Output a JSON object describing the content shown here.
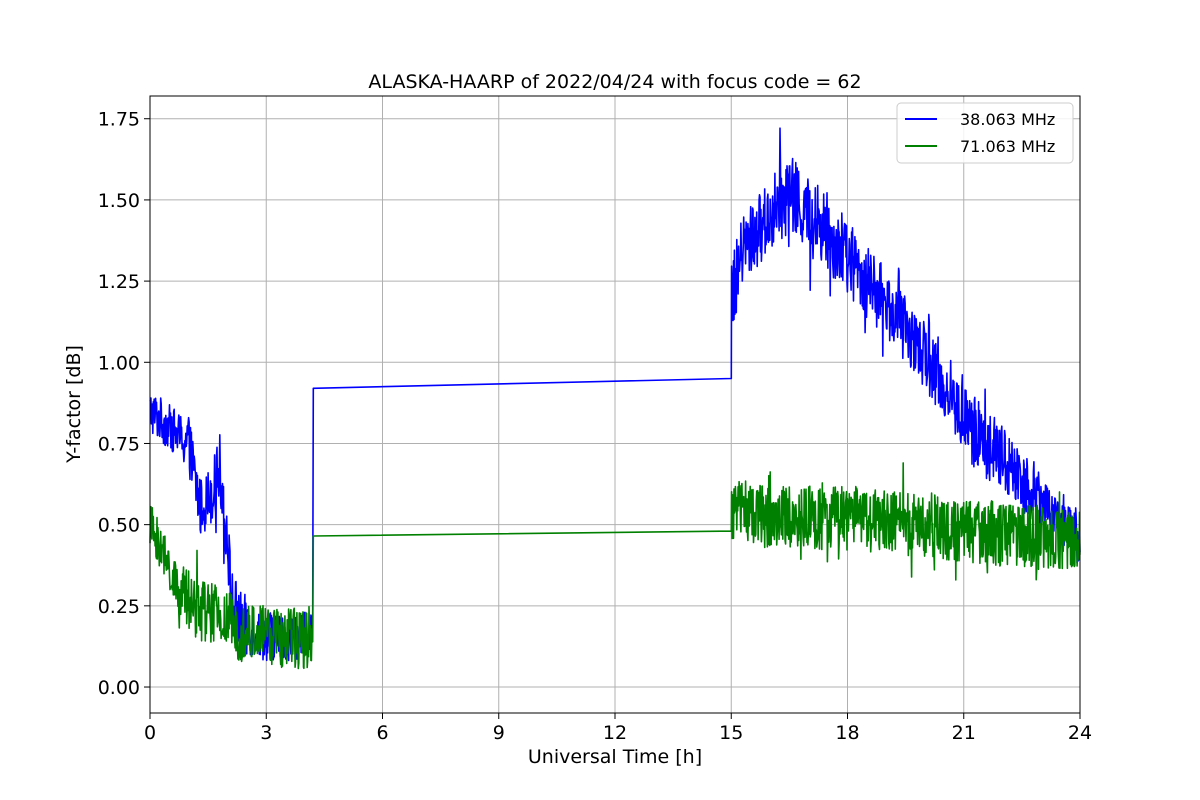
{
  "chart_data": {
    "type": "line",
    "title": "ALASKA-HAARP of 2022/04/24 with focus code = 62",
    "xlabel": "Universal Time [h]",
    "ylabel": "Y-factor [dB]",
    "xlim": [
      0,
      24
    ],
    "ylim": [
      -0.08,
      1.82
    ],
    "xticks": [
      0,
      3,
      6,
      9,
      12,
      15,
      18,
      21,
      24
    ],
    "xtick_labels": [
      "0",
      "3",
      "6",
      "9",
      "12",
      "15",
      "18",
      "21",
      "24"
    ],
    "yticks": [
      0.0,
      0.25,
      0.5,
      0.75,
      1.0,
      1.25,
      1.5,
      1.75
    ],
    "ytick_labels": [
      "0.00",
      "0.25",
      "0.50",
      "0.75",
      "1.00",
      "1.25",
      "1.50",
      "1.75"
    ],
    "grid": true,
    "legend_position": "top-right",
    "series": [
      {
        "name": "38.063 MHz",
        "color": "#0000ff",
        "noise": [
          0.07,
          0.09,
          0.1,
          0.08,
          0.07,
          0.11,
          0.12,
          0.12,
          0.11,
          0.1,
          0.1,
          0.11,
          0.1,
          0.07
        ],
        "x": [
          0,
          0.5,
          1.0,
          1.3,
          1.6,
          1.8,
          2.0,
          2.1,
          2.3,
          2.5,
          3.0,
          3.5,
          4.0,
          4.2,
          4.21,
          15.0,
          15.01,
          15.3,
          16.0,
          16.5,
          17.0,
          17.5,
          18.0,
          19.0,
          20.0,
          21.0,
          22.0,
          23.0,
          24.0
        ],
        "y": [
          0.85,
          0.8,
          0.75,
          0.55,
          0.6,
          0.68,
          0.45,
          0.28,
          0.2,
          0.18,
          0.16,
          0.15,
          0.16,
          0.2,
          0.92,
          0.95,
          1.2,
          1.35,
          1.45,
          1.52,
          1.45,
          1.4,
          1.32,
          1.18,
          1.02,
          0.82,
          0.7,
          0.58,
          0.45
        ]
      },
      {
        "name": "71.063 MHz",
        "color": "#008000",
        "noise": [
          0.07,
          0.1,
          0.1,
          0.09,
          0.1,
          0.1,
          0.1,
          0.1,
          0.1
        ],
        "x": [
          0,
          0.3,
          0.7,
          1.0,
          2.0,
          2.5,
          3.0,
          3.5,
          4.0,
          4.2,
          4.21,
          15.0,
          15.01,
          16.0,
          18.0,
          20.0,
          22.0,
          24.0
        ],
        "y": [
          0.5,
          0.42,
          0.3,
          0.26,
          0.2,
          0.17,
          0.16,
          0.15,
          0.15,
          0.16,
          0.465,
          0.48,
          0.55,
          0.52,
          0.52,
          0.5,
          0.47,
          0.45
        ]
      }
    ]
  }
}
